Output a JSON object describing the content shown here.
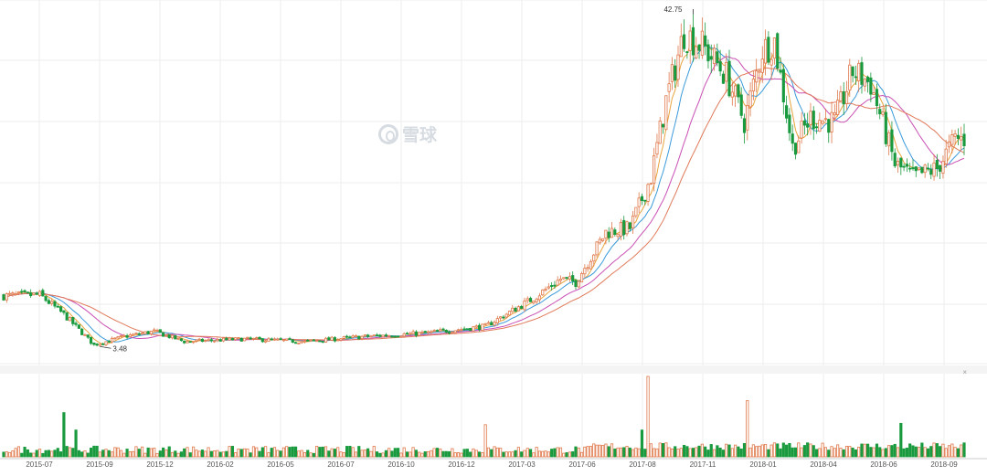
{
  "watermark": {
    "text": "雪球",
    "icon": "snowball-logo-icon"
  },
  "collapse_icon": "×",
  "colors": {
    "up": "#e0784a",
    "down": "#1a9a3e",
    "ma5": "#e8a33c",
    "ma10": "#3a9ad9",
    "ma20": "#c94fb4",
    "ma30": "#e07a5a",
    "grid": "#eeeeee",
    "axis_text": "#555555"
  },
  "chart_data": {
    "type": "candlestick",
    "title": "",
    "xlabel": "",
    "ylabel": "",
    "x_ticks": [
      "2015-07",
      "2015-09",
      "2015-12",
      "2016-02",
      "2016-05",
      "2016-07",
      "2016-10",
      "2016-12",
      "2017-03",
      "2017-06",
      "2017-08",
      "2017-11",
      "2018-01",
      "2018-04",
      "2018-06",
      "2018-09"
    ],
    "annotations": {
      "high": "42.75",
      "low": "3.48"
    },
    "anchors": [
      {
        "t": 0,
        "p": 10.0
      },
      {
        "t": 12,
        "p": 10.1
      },
      {
        "t": 20,
        "p": 7.8
      },
      {
        "t": 30,
        "p": 4.2
      },
      {
        "t": 40,
        "p": 5.2
      },
      {
        "t": 50,
        "p": 5.8
      },
      {
        "t": 60,
        "p": 4.6
      },
      {
        "t": 80,
        "p": 4.9
      },
      {
        "t": 100,
        "p": 4.6
      },
      {
        "t": 120,
        "p": 5.2
      },
      {
        "t": 140,
        "p": 5.6
      },
      {
        "t": 160,
        "p": 6.4
      },
      {
        "t": 175,
        "p": 9.5
      },
      {
        "t": 185,
        "p": 12.0
      },
      {
        "t": 190,
        "p": 11.6
      },
      {
        "t": 200,
        "p": 17.5
      },
      {
        "t": 208,
        "p": 18.0
      },
      {
        "t": 215,
        "p": 24.0
      },
      {
        "t": 220,
        "p": 33.0
      },
      {
        "t": 226,
        "p": 41.0
      },
      {
        "t": 232,
        "p": 39.5
      },
      {
        "t": 240,
        "p": 36.0
      },
      {
        "t": 246,
        "p": 30.5
      },
      {
        "t": 252,
        "p": 39.0
      },
      {
        "t": 256,
        "p": 40.0
      },
      {
        "t": 262,
        "p": 27.5
      },
      {
        "t": 268,
        "p": 31.0
      },
      {
        "t": 276,
        "p": 30.5
      },
      {
        "t": 282,
        "p": 36.5
      },
      {
        "t": 288,
        "p": 35.0
      },
      {
        "t": 296,
        "p": 25.5
      },
      {
        "t": 302,
        "p": 24.0
      },
      {
        "t": 310,
        "p": 25.0
      },
      {
        "t": 316,
        "p": 28.5
      }
    ],
    "volume_spikes": {
      "20": 3.3,
      "24": 2.0,
      "160": 2.4,
      "212": 2.0,
      "214": 6.0,
      "247": 4.2,
      "298": 2.5
    }
  }
}
